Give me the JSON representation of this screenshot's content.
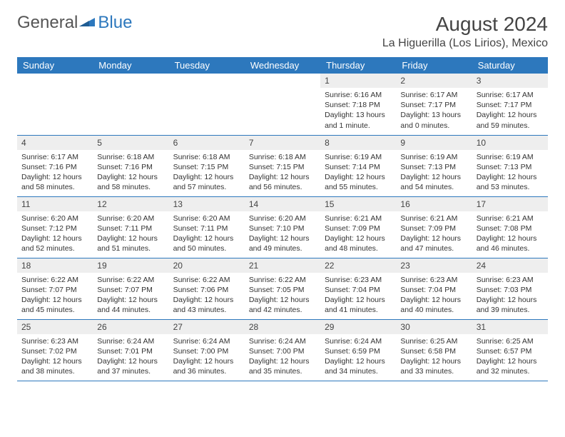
{
  "logo": {
    "text1": "General",
    "text2": "Blue"
  },
  "title": "August 2024",
  "location": "La Higuerilla (Los Lirios), Mexico",
  "colors": {
    "header_bg": "#2d78bd",
    "header_text": "#ffffff",
    "daynum_bg": "#eeeeee",
    "border": "#2d78bd",
    "body_text": "#333333",
    "title_text": "#444444"
  },
  "day_headers": [
    "Sunday",
    "Monday",
    "Tuesday",
    "Wednesday",
    "Thursday",
    "Friday",
    "Saturday"
  ],
  "weeks": [
    [
      null,
      null,
      null,
      null,
      {
        "n": "1",
        "sr": "6:16 AM",
        "ss": "7:18 PM",
        "dl": "13 hours and 1 minute."
      },
      {
        "n": "2",
        "sr": "6:17 AM",
        "ss": "7:17 PM",
        "dl": "13 hours and 0 minutes."
      },
      {
        "n": "3",
        "sr": "6:17 AM",
        "ss": "7:17 PM",
        "dl": "12 hours and 59 minutes."
      }
    ],
    [
      {
        "n": "4",
        "sr": "6:17 AM",
        "ss": "7:16 PM",
        "dl": "12 hours and 58 minutes."
      },
      {
        "n": "5",
        "sr": "6:18 AM",
        "ss": "7:16 PM",
        "dl": "12 hours and 58 minutes."
      },
      {
        "n": "6",
        "sr": "6:18 AM",
        "ss": "7:15 PM",
        "dl": "12 hours and 57 minutes."
      },
      {
        "n": "7",
        "sr": "6:18 AM",
        "ss": "7:15 PM",
        "dl": "12 hours and 56 minutes."
      },
      {
        "n": "8",
        "sr": "6:19 AM",
        "ss": "7:14 PM",
        "dl": "12 hours and 55 minutes."
      },
      {
        "n": "9",
        "sr": "6:19 AM",
        "ss": "7:13 PM",
        "dl": "12 hours and 54 minutes."
      },
      {
        "n": "10",
        "sr": "6:19 AM",
        "ss": "7:13 PM",
        "dl": "12 hours and 53 minutes."
      }
    ],
    [
      {
        "n": "11",
        "sr": "6:20 AM",
        "ss": "7:12 PM",
        "dl": "12 hours and 52 minutes."
      },
      {
        "n": "12",
        "sr": "6:20 AM",
        "ss": "7:11 PM",
        "dl": "12 hours and 51 minutes."
      },
      {
        "n": "13",
        "sr": "6:20 AM",
        "ss": "7:11 PM",
        "dl": "12 hours and 50 minutes."
      },
      {
        "n": "14",
        "sr": "6:20 AM",
        "ss": "7:10 PM",
        "dl": "12 hours and 49 minutes."
      },
      {
        "n": "15",
        "sr": "6:21 AM",
        "ss": "7:09 PM",
        "dl": "12 hours and 48 minutes."
      },
      {
        "n": "16",
        "sr": "6:21 AM",
        "ss": "7:09 PM",
        "dl": "12 hours and 47 minutes."
      },
      {
        "n": "17",
        "sr": "6:21 AM",
        "ss": "7:08 PM",
        "dl": "12 hours and 46 minutes."
      }
    ],
    [
      {
        "n": "18",
        "sr": "6:22 AM",
        "ss": "7:07 PM",
        "dl": "12 hours and 45 minutes."
      },
      {
        "n": "19",
        "sr": "6:22 AM",
        "ss": "7:07 PM",
        "dl": "12 hours and 44 minutes."
      },
      {
        "n": "20",
        "sr": "6:22 AM",
        "ss": "7:06 PM",
        "dl": "12 hours and 43 minutes."
      },
      {
        "n": "21",
        "sr": "6:22 AM",
        "ss": "7:05 PM",
        "dl": "12 hours and 42 minutes."
      },
      {
        "n": "22",
        "sr": "6:23 AM",
        "ss": "7:04 PM",
        "dl": "12 hours and 41 minutes."
      },
      {
        "n": "23",
        "sr": "6:23 AM",
        "ss": "7:04 PM",
        "dl": "12 hours and 40 minutes."
      },
      {
        "n": "24",
        "sr": "6:23 AM",
        "ss": "7:03 PM",
        "dl": "12 hours and 39 minutes."
      }
    ],
    [
      {
        "n": "25",
        "sr": "6:23 AM",
        "ss": "7:02 PM",
        "dl": "12 hours and 38 minutes."
      },
      {
        "n": "26",
        "sr": "6:24 AM",
        "ss": "7:01 PM",
        "dl": "12 hours and 37 minutes."
      },
      {
        "n": "27",
        "sr": "6:24 AM",
        "ss": "7:00 PM",
        "dl": "12 hours and 36 minutes."
      },
      {
        "n": "28",
        "sr": "6:24 AM",
        "ss": "7:00 PM",
        "dl": "12 hours and 35 minutes."
      },
      {
        "n": "29",
        "sr": "6:24 AM",
        "ss": "6:59 PM",
        "dl": "12 hours and 34 minutes."
      },
      {
        "n": "30",
        "sr": "6:25 AM",
        "ss": "6:58 PM",
        "dl": "12 hours and 33 minutes."
      },
      {
        "n": "31",
        "sr": "6:25 AM",
        "ss": "6:57 PM",
        "dl": "12 hours and 32 minutes."
      }
    ]
  ],
  "labels": {
    "sunrise": "Sunrise:",
    "sunset": "Sunset:",
    "daylight": "Daylight:"
  }
}
